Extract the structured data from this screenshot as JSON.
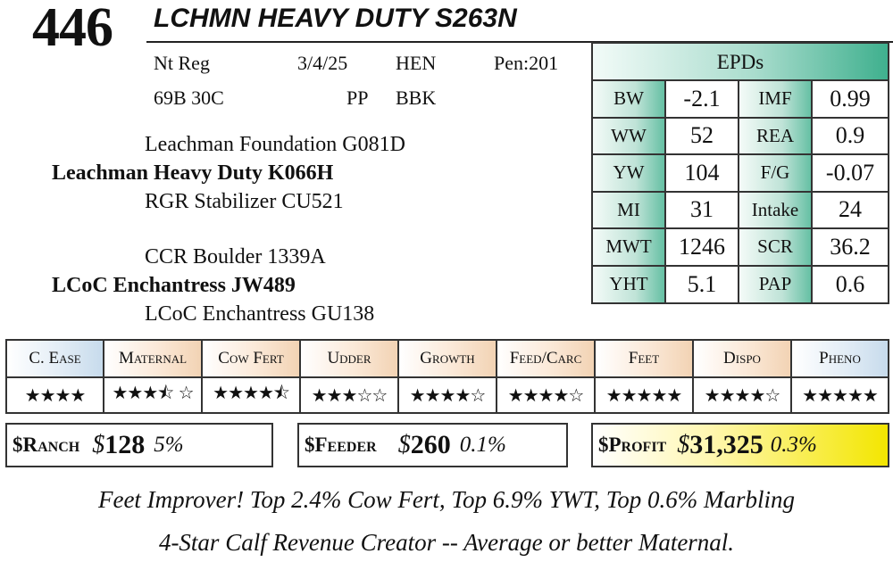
{
  "header": {
    "lot_number": "446",
    "name": "LCHMN HEAVY DUTY S263N"
  },
  "info": {
    "reg": "Nt Reg",
    "birth_date": "3/4/25",
    "herd_code": "HEN",
    "pen": "Pen:201",
    "tag": "69B 30C",
    "polled": "PP",
    "color": "BBK"
  },
  "pedigree": {
    "sire_sire": "Leachman Foundation G081D",
    "sire": "Leachman Heavy Duty K066H",
    "sire_dam": "RGR Stabilizer CU521",
    "dam_sire": "CCR Boulder 1339A",
    "dam": "LCoC Enchantress JW489",
    "dam_dam": "LCoC Enchantress GU138"
  },
  "epds": {
    "title": "EPDs",
    "rows": [
      {
        "label1": "BW",
        "value1": "-2.1",
        "label2": "IMF",
        "value2": "0.99"
      },
      {
        "label1": "WW",
        "value1": "52",
        "label2": "REA",
        "value2": "0.9"
      },
      {
        "label1": "YW",
        "value1": "104",
        "label2": "F/G",
        "value2": "-0.07"
      },
      {
        "label1": "MI",
        "value1": "31",
        "label2": "Intake",
        "value2": "24"
      },
      {
        "label1": "MWT",
        "value1": "1246",
        "label2": "SCR",
        "value2": "36.2"
      },
      {
        "label1": "YHT",
        "value1": "5.1",
        "label2": "PAP",
        "value2": "0.6"
      }
    ]
  },
  "traits": [
    {
      "label": "C. Ease",
      "stars": "★★★★",
      "rating": 4
    },
    {
      "label": "Maternal",
      "stars": "★★★⯪ ☆",
      "rating": 3.5
    },
    {
      "label": "Cow Fert",
      "stars": "★★★★⯪",
      "rating": 4.5
    },
    {
      "label": "Udder",
      "stars": "★★★☆☆",
      "rating": 3
    },
    {
      "label": "Growth",
      "stars": "★★★★☆",
      "rating": 4
    },
    {
      "label": "Feed/Carc",
      "stars": "★★★★☆",
      "rating": 4
    },
    {
      "label": "Feet",
      "stars": "★★★★★",
      "rating": 5
    },
    {
      "label": "Dispo",
      "stars": "★★★★☆",
      "rating": 4
    },
    {
      "label": "Pheno",
      "stars": "★★★★★",
      "rating": 5
    }
  ],
  "dollar_values": {
    "ranch": {
      "label": "$Ranch",
      "dollar": "$",
      "value": "128",
      "percent": "5%"
    },
    "feeder": {
      "label": "$Feeder",
      "dollar": "$",
      "value": "260",
      "percent": "0.1%"
    },
    "profit": {
      "label": "$Profit",
      "dollar": "$",
      "value": "31,325",
      "percent": "0.3%"
    }
  },
  "notes": {
    "line1": "Feet Improver! Top 2.4% Cow Fert, Top 6.9% YWT, Top 0.6% Marbling",
    "line2": "4-Star Calf Revenue Creator -- Average or better Maternal."
  },
  "colors": {
    "epd_accent": "#3fb08e",
    "trait_gold": "#f2d3b4",
    "trait_blue": "#c7dbec",
    "profit_yellow": "#f3e600"
  }
}
